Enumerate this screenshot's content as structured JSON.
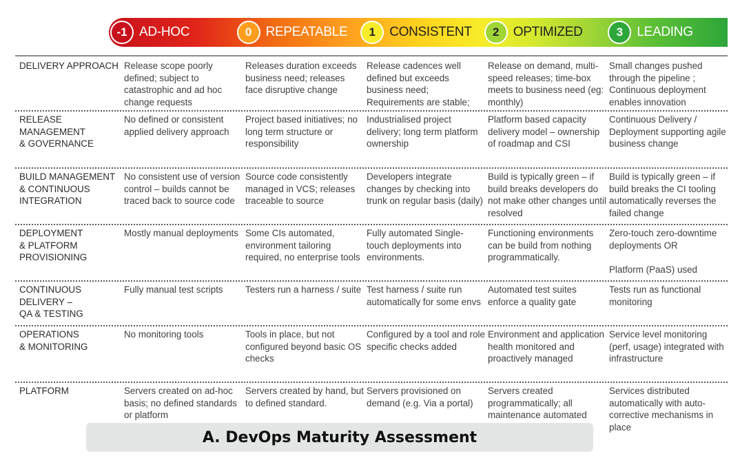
{
  "colors": {
    "adhoc": "#c8111c",
    "repeatable": "#ff9d1f",
    "consistent": "#f7ec2a",
    "optimized": "#9fd536",
    "leading": "#2da63a"
  },
  "levels": [
    {
      "number": "-1",
      "label": "AD-HOC"
    },
    {
      "number": "0",
      "label": "REPEATABLE"
    },
    {
      "number": "1",
      "label": "CONSISTENT"
    },
    {
      "number": "2",
      "label": "OPTIMIZED"
    },
    {
      "number": "3",
      "label": "LEADING"
    }
  ],
  "rows": [
    {
      "category": "DELIVERY APPROACH",
      "cells": [
        "Release scope poorly defined; subject to catastrophic and ad hoc change requests",
        "Releases duration exceeds business need; releases face disruptive change",
        "Release cadences well defined but exceeds business need; Requirements are stable;",
        "Release on demand, multi-speed releases; time-box meets to business need (eg: monthly)",
        "Small changes pushed through the pipeline ; Continuous deployment enables innovation"
      ]
    },
    {
      "category": "RELEASE\nMANAGEMENT\n& GOVERNANCE",
      "cells": [
        "No defined or consistent applied delivery approach",
        "Project based initiatives; no long term structure or responsibility",
        "Industrialised project delivery; long term platform ownership",
        "Platform based capacity delivery model – ownership of roadmap and CSI",
        "Continuous Delivery / Deployment supporting agile business change"
      ]
    },
    {
      "category": "BUILD MANAGEMENT\n& CONTINUOUS\nINTEGRATION",
      "cells": [
        "No consistent use of version control – builds cannot be traced back to source code",
        "Source code consistently managed in VCS; releases traceable to source",
        "Developers integrate changes by checking into trunk on regular basis (daily)",
        "Build is typically green – if build breaks developers do not make other changes until resolved",
        "Build is typically green – if build breaks the CI tooling automatically reverses the failed change"
      ]
    },
    {
      "category": "DEPLOYMENT\n& PLATFORM\nPROVISIONING",
      "cells": [
        "Mostly manual deployments",
        "Some CIs automated, environment tailoring required, no enterprise tools",
        "Fully automated Single-touch deployments into environments.",
        "Functioning environments can be build from nothing programmatically.",
        "Zero-touch zero-downtime deployments OR\n\nPlatform (PaaS) used"
      ]
    },
    {
      "category": "CONTINUOUS\nDELIVERY –\nQA & TESTING",
      "cells": [
        "Fully manual test scripts",
        "Testers run a harness / suite",
        "Test harness / suite run automatically for some envs",
        "Automated test suites enforce a quality gate",
        "Tests run as functional monitoring"
      ]
    },
    {
      "category": "OPERATIONS\n& MONITORING",
      "cells": [
        "No monitoring tools",
        "Tools in place, but not configured beyond basic OS checks",
        "Configured by a tool and role specific checks added",
        "Environment and application health monitored and proactively managed",
        "Service level monitoring (perf, usage) integrated with infrastructure"
      ]
    },
    {
      "category": "PLATFORM",
      "cells": [
        "Servers  created on ad-hoc basis; no defined standards or platform",
        "Servers created by hand, but to defined standard.",
        "Servers provisioned on demand (e.g. Via a portal)",
        "Servers created programmatically; all maintenance automated",
        "Services distributed automatically with auto-corrective mechanisms in place"
      ]
    }
  ],
  "caption": "A. DevOps Maturity Assessment"
}
